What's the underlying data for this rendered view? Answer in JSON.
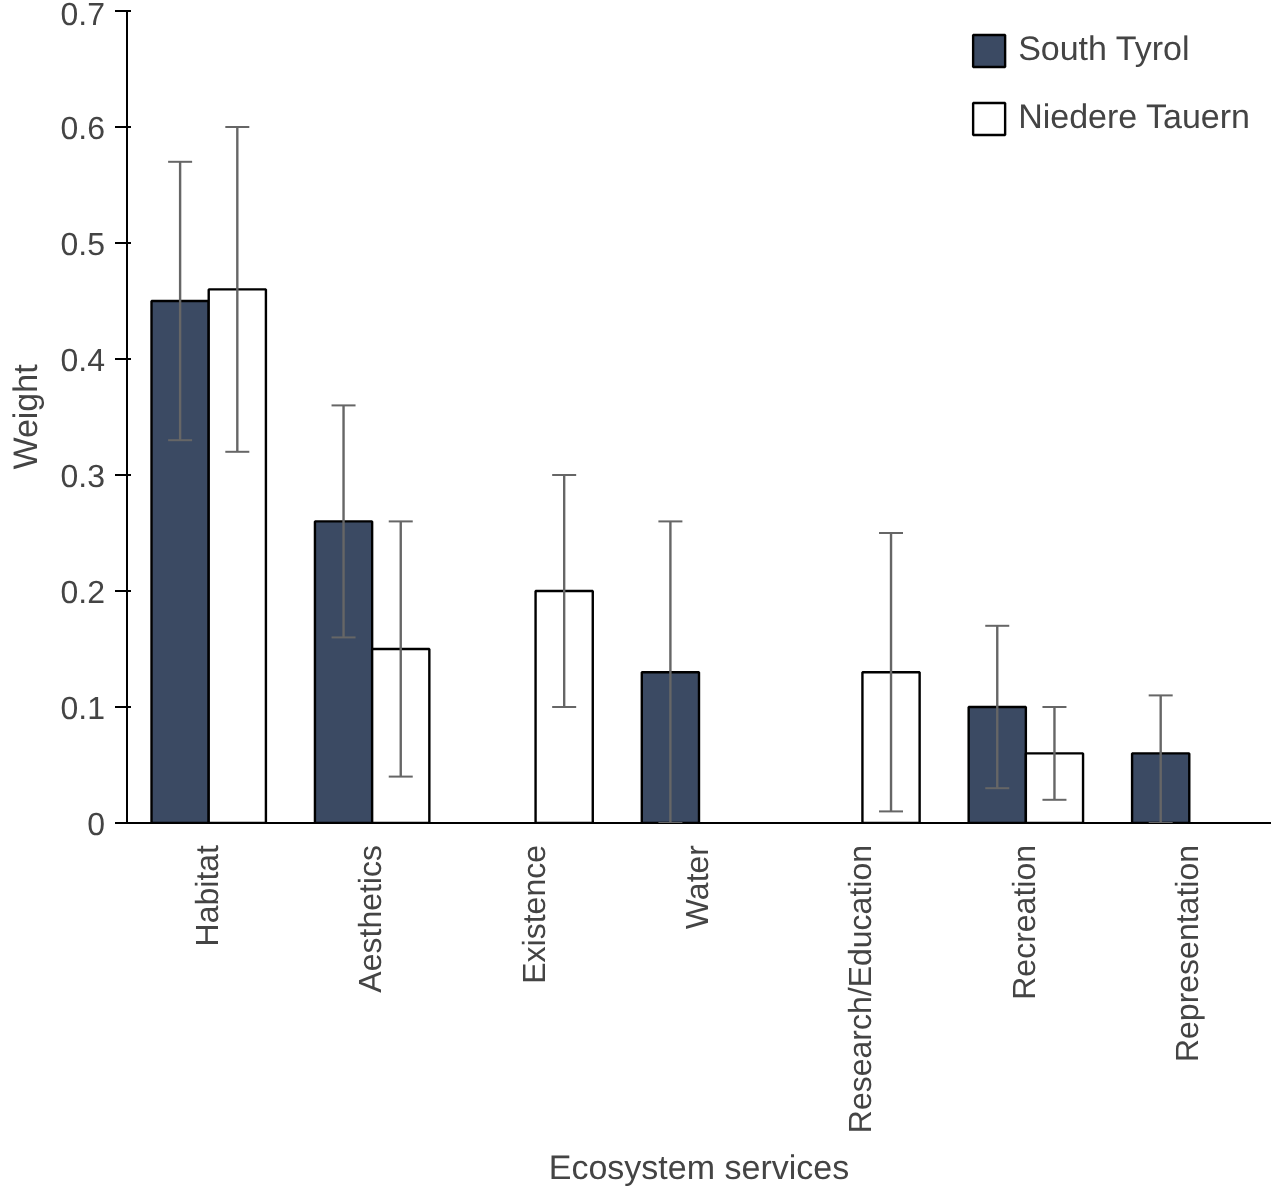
{
  "chart_data": {
    "type": "bar",
    "xlabel": "Ecosystem services",
    "ylabel": "Weight",
    "categories": [
      "Habitat",
      "Aesthetics",
      "Existence",
      "Water",
      "Research/Education",
      "Recreation",
      "Representation"
    ],
    "series": [
      {
        "name": "South Tyrol",
        "color": "#3b4a63",
        "values": [
          0.45,
          0.26,
          null,
          0.13,
          null,
          0.1,
          0.06
        ],
        "errors": [
          [
            0.33,
            0.57
          ],
          [
            0.16,
            0.36
          ],
          null,
          [
            0.0,
            0.26
          ],
          null,
          [
            0.03,
            0.17
          ],
          [
            0.0,
            0.11
          ]
        ]
      },
      {
        "name": "Niedere Tauern",
        "color": "#ffffff",
        "values": [
          0.46,
          0.15,
          0.2,
          null,
          0.13,
          0.06,
          null
        ],
        "errors": [
          [
            0.32,
            0.6
          ],
          [
            0.04,
            0.26
          ],
          [
            0.1,
            0.3
          ],
          null,
          [
            0.01,
            0.25
          ],
          [
            0.02,
            0.1
          ],
          null
        ]
      }
    ],
    "ylim": [
      0,
      0.7
    ],
    "yticks": [
      0,
      0.1,
      0.2,
      0.3,
      0.4,
      0.5,
      0.6,
      0.7
    ],
    "grid": false,
    "legend": "top right"
  }
}
